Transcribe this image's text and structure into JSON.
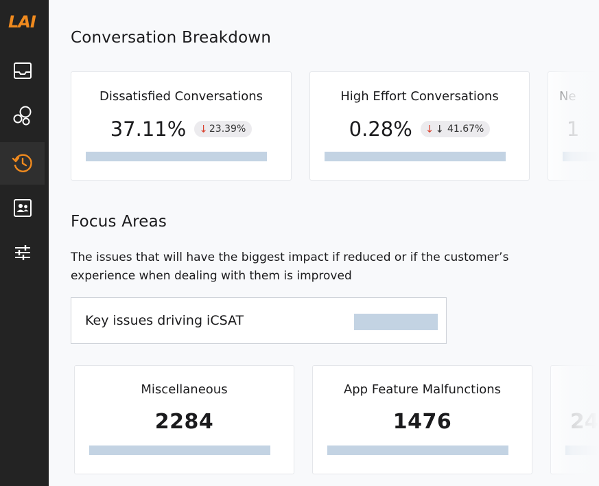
{
  "app": {
    "logo_text": "LAI"
  },
  "sidebar": {
    "items": [
      {
        "name": "inbox",
        "icon": "inbox-icon"
      },
      {
        "name": "bubbles",
        "icon": "bubbles-icon"
      },
      {
        "name": "history",
        "icon": "history-icon",
        "active": true
      },
      {
        "name": "contacts",
        "icon": "contact-card-icon"
      },
      {
        "name": "settings",
        "icon": "sliders-icon"
      }
    ],
    "accent_color": "#f08a1e"
  },
  "breakdown": {
    "title": "Conversation Breakdown",
    "cards": [
      {
        "title": "Dissatisfied Conversations",
        "value": "37.11%",
        "delta": "23.39%"
      },
      {
        "title": "High Effort Conversations",
        "value": "0.28%",
        "delta": "41.67%"
      },
      {
        "title": "Ne",
        "value": "1"
      }
    ]
  },
  "focus": {
    "title": "Focus Areas",
    "description": "The issues that will have the biggest impact if reduced or if the customer’s experience when dealing with them is improved",
    "select_label": "Key issues driving iCSAT",
    "cards": [
      {
        "title": "Miscellaneous",
        "value": "2284"
      },
      {
        "title": "App Feature Malfunctions",
        "value": "1476"
      },
      {
        "title": "",
        "value": "24"
      }
    ]
  },
  "colors": {
    "negative_arrow": "#d9412e",
    "placeholder_bar": "#c3d3e3"
  }
}
